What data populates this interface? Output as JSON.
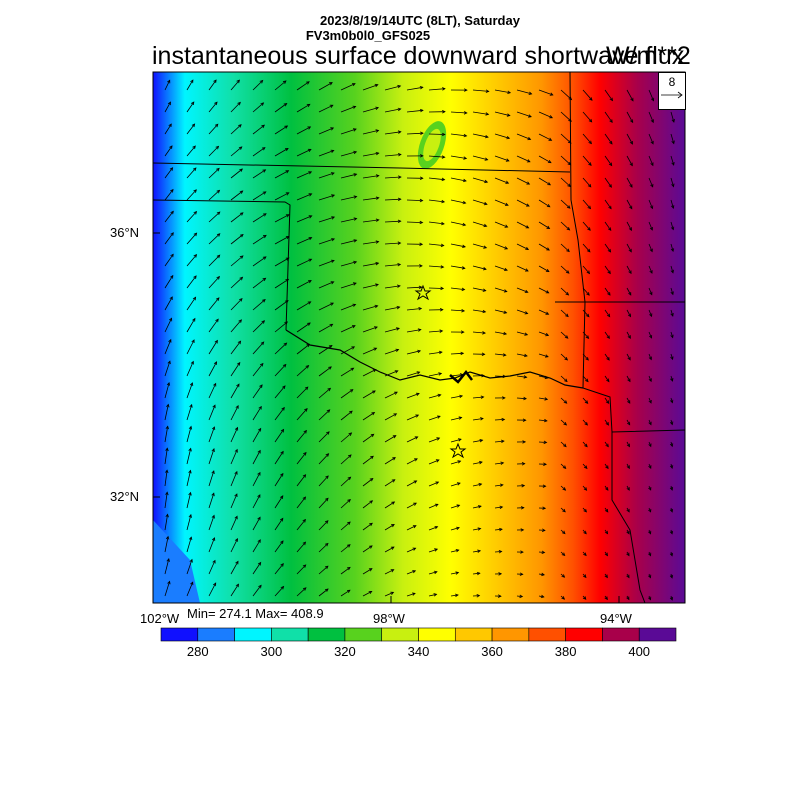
{
  "header": {
    "date_line": "2023/8/19/14UTC (8LT), Saturday",
    "model_line": "FV3m0b0l0_GFS025",
    "title": "instantaneous surface downward shortwave flux",
    "units": "W/m**2"
  },
  "reference_vector": {
    "label": "8",
    "icon": "arrow-right-icon"
  },
  "axes": {
    "lat_labels": [
      "36°N",
      "32°N"
    ],
    "lon_labels": [
      "102°W",
      "98°W",
      "94°W"
    ]
  },
  "stats": {
    "text": "Min= 274.1 Max= 408.9"
  },
  "colorbar": {
    "colors": [
      "#1010ff",
      "#1a7dff",
      "#00f5ff",
      "#10e0a8",
      "#00c040",
      "#58d21e",
      "#c8f010",
      "#ffff00",
      "#ffc800",
      "#ff9600",
      "#ff5000",
      "#ff0000",
      "#a8004a",
      "#5a0a96"
    ],
    "tick_labels": [
      "280",
      "300",
      "320",
      "340",
      "360",
      "380",
      "400"
    ]
  },
  "stations": {
    "icon": "star-icon",
    "count": 2
  }
}
